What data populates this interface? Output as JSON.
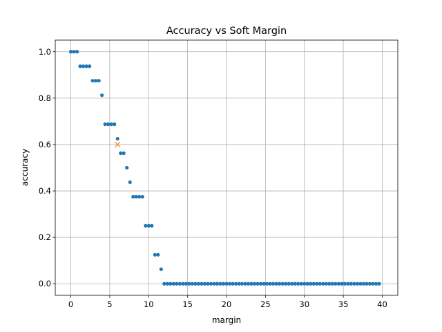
{
  "chart_data": {
    "type": "scatter",
    "title": "Accuracy vs Soft Margin",
    "xlabel": "margin",
    "ylabel": "accuracy",
    "xlim": [
      -2,
      42
    ],
    "ylim": [
      -0.05,
      1.05
    ],
    "xticks": [
      0,
      5,
      10,
      15,
      20,
      25,
      30,
      35,
      40
    ],
    "yticks": [
      0.0,
      0.2,
      0.4,
      0.6,
      0.8,
      1.0
    ],
    "xtick_labels": [
      "0",
      "5",
      "10",
      "15",
      "20",
      "25",
      "30",
      "35",
      "40"
    ],
    "ytick_labels": [
      "0.0",
      "0.2",
      "0.4",
      "0.6",
      "0.8",
      "1.0"
    ],
    "grid": true,
    "series": [
      {
        "marker": "dot",
        "color": "#1f77b4",
        "x": [
          0,
          0.4,
          0.8,
          1.2,
          1.6,
          2.0,
          2.4,
          2.8,
          3.2,
          3.6,
          4.0,
          4.4,
          4.8,
          5.2,
          5.6,
          6.0,
          6.4,
          6.8,
          7.2,
          7.6,
          8.0,
          8.4,
          8.8,
          9.2,
          9.6,
          10.0,
          10.4,
          10.8,
          11.2,
          11.6,
          12.0,
          12.4,
          12.8,
          13.2,
          13.6,
          14.0,
          14.4,
          14.8,
          15.2,
          15.6,
          16.0,
          16.4,
          16.8,
          17.2,
          17.6,
          18.0,
          18.4,
          18.8,
          19.2,
          19.6,
          20.0,
          20.4,
          20.8,
          21.2,
          21.6,
          22.0,
          22.4,
          22.8,
          23.2,
          23.6,
          24.0,
          24.4,
          24.8,
          25.2,
          25.6,
          26.0,
          26.4,
          26.8,
          27.2,
          27.6,
          28.0,
          28.4,
          28.8,
          29.2,
          29.6,
          30.0,
          30.4,
          30.8,
          31.2,
          31.6,
          32.0,
          32.4,
          32.8,
          33.2,
          33.6,
          34.0,
          34.4,
          34.8,
          35.2,
          35.6,
          36.0,
          36.4,
          36.8,
          37.2,
          37.6,
          38.0,
          38.4,
          38.8,
          39.2,
          39.6
        ],
        "y": [
          1.0,
          1.0,
          1.0,
          0.9375,
          0.9375,
          0.9375,
          0.9375,
          0.875,
          0.875,
          0.875,
          0.8125,
          0.6875,
          0.6875,
          0.6875,
          0.6875,
          0.625,
          0.5625,
          0.5625,
          0.5,
          0.4375,
          0.375,
          0.375,
          0.375,
          0.375,
          0.25,
          0.25,
          0.25,
          0.125,
          0.125,
          0.0625,
          0.0,
          0.0,
          0.0,
          0.0,
          0.0,
          0.0,
          0.0,
          0.0,
          0.0,
          0.0,
          0.0,
          0.0,
          0.0,
          0.0,
          0.0,
          0.0,
          0.0,
          0.0,
          0.0,
          0.0,
          0.0,
          0.0,
          0.0,
          0.0,
          0.0,
          0.0,
          0.0,
          0.0,
          0.0,
          0.0,
          0.0,
          0.0,
          0.0,
          0.0,
          0.0,
          0.0,
          0.0,
          0.0,
          0.0,
          0.0,
          0.0,
          0.0,
          0.0,
          0.0,
          0.0,
          0.0,
          0.0,
          0.0,
          0.0,
          0.0,
          0.0,
          0.0,
          0.0,
          0.0,
          0.0,
          0.0,
          0.0,
          0.0,
          0.0,
          0.0,
          0.0,
          0.0,
          0.0,
          0.0,
          0.0,
          0.0,
          0.0,
          0.0,
          0.0,
          0.0
        ]
      },
      {
        "marker": "x",
        "color": "#ff7f0e",
        "x": [
          6.0
        ],
        "y": [
          0.6
        ]
      }
    ]
  }
}
